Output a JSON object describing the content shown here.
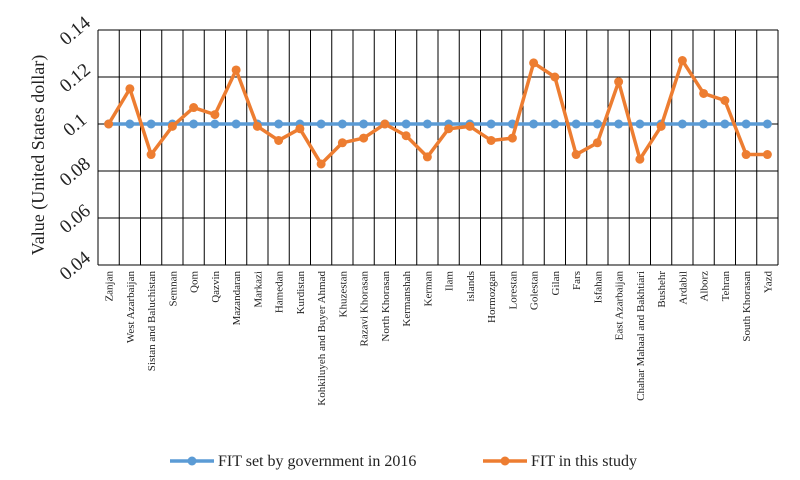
{
  "chart_data": {
    "type": "line",
    "title": "",
    "xlabel": "",
    "ylabel": "Value (United States dollar)",
    "ylim": [
      0.04,
      0.14
    ],
    "yticks": [
      0.04,
      0.06,
      0.08,
      0.1,
      0.12,
      0.14
    ],
    "ytick_labels": [
      "0.04",
      "0.06",
      "0.08",
      "0.1",
      "0.12",
      "0.14"
    ],
    "grid": "vertical and horizontal",
    "legend_position": "bottom",
    "categories": [
      "Zanjan",
      "West Azarbaijan",
      "Sistan and Baluchistan",
      "Semnan",
      "Qom",
      "Qazvin",
      "Mazandaran",
      "Markazi",
      "Hamedan",
      "Kurdistan",
      "Kohkiluyeh and Buyer Ahmad",
      "Khuzestan",
      "Razavi Khorasan",
      "North Khorasan",
      "Kermanshah",
      "Kerman",
      "Ilam",
      "islands",
      "Hormozgan",
      "Lorestan",
      "Golestan",
      "Gilan",
      "Fars",
      "Isfahan",
      "East Azarbaijan",
      "Chahar Mahaal and Bakhtiari",
      "Bushehr",
      "Ardabil",
      "Alborz",
      "Tehran",
      "South Khorasan",
      "Yazd"
    ],
    "series": [
      {
        "name": "FIT set by government in 2016",
        "color": "#5b9bd5",
        "values": [
          0.1,
          0.1,
          0.1,
          0.1,
          0.1,
          0.1,
          0.1,
          0.1,
          0.1,
          0.1,
          0.1,
          0.1,
          0.1,
          0.1,
          0.1,
          0.1,
          0.1,
          0.1,
          0.1,
          0.1,
          0.1,
          0.1,
          0.1,
          0.1,
          0.1,
          0.1,
          0.1,
          0.1,
          0.1,
          0.1,
          0.1,
          0.1
        ]
      },
      {
        "name": "FIT in this study",
        "color": "#ed7d31",
        "values": [
          0.1,
          0.115,
          0.087,
          0.099,
          0.107,
          0.104,
          0.123,
          0.099,
          0.093,
          0.098,
          0.083,
          0.092,
          0.094,
          0.1,
          0.095,
          0.086,
          0.098,
          0.099,
          0.093,
          0.094,
          0.126,
          0.12,
          0.087,
          0.092,
          0.118,
          0.085,
          0.099,
          0.127,
          0.113,
          0.11,
          0.087,
          0.087
        ]
      }
    ]
  }
}
